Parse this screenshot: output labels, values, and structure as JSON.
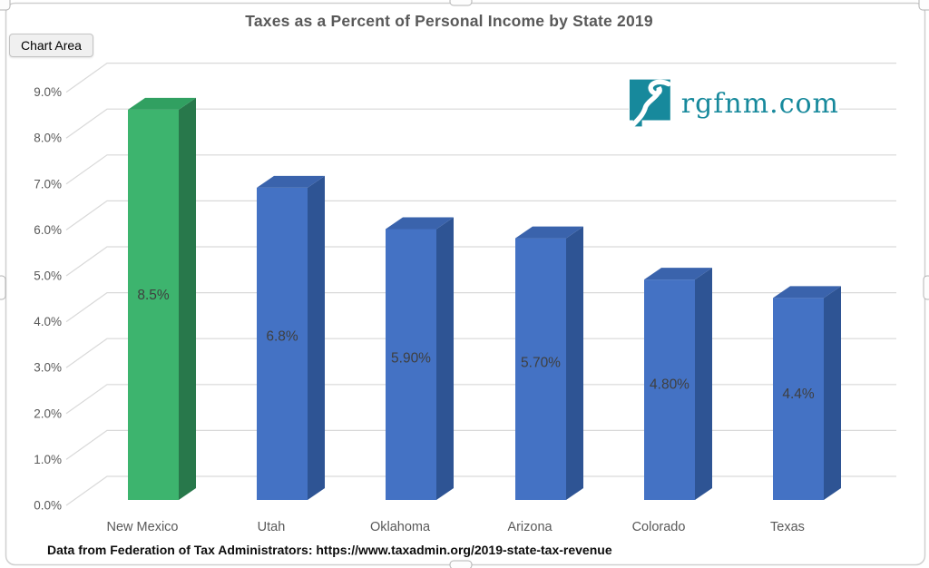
{
  "tooltip": {
    "label": "Chart Area"
  },
  "title": "Taxes as a Percent of Personal Income by State 2019",
  "logo": {
    "text": "rgfnm.com"
  },
  "source_note": "Data from Federation of Tax Administrators: https://www.taxadmin.org/2019-state-tax-revenue",
  "colors": {
    "highlight_front": "#3db46e",
    "highlight_side": "#28784b",
    "highlight_top": "#31a061",
    "bar_front": "#4472c4",
    "bar_side": "#2e5494",
    "bar_top": "#3a63ac",
    "gridline": "#d9d9d9",
    "axis_text": "#595959",
    "category_text": "#595959",
    "data_label_text": "#3f3f3f",
    "title_text": "#595959",
    "logo_teal": "#17899c",
    "frame_border": "#cfcfcf",
    "handle_fill": "#fdfdfd",
    "handle_border": "#b3b3b3"
  },
  "chart_data": {
    "type": "bar",
    "projection": "3d",
    "title": "Taxes as a Percent of Personal Income by State 2019",
    "categories": [
      "New Mexico",
      "Utah",
      "Oklahoma",
      "Arizona",
      "Colorado",
      "Texas"
    ],
    "values": [
      8.5,
      6.8,
      5.9,
      5.7,
      4.8,
      4.4
    ],
    "data_labels": [
      "8.5%",
      "6.8%",
      "5.90%",
      "5.70%",
      "4.80%",
      "4.4%"
    ],
    "highlight_index": 0,
    "xlabel": "",
    "ylabel": "",
    "ylim": [
      0,
      9
    ],
    "ytick_step": 1,
    "yticks": [
      "0.0%",
      "1.0%",
      "2.0%",
      "3.0%",
      "4.0%",
      "5.0%",
      "6.0%",
      "7.0%",
      "8.0%",
      "9.0%"
    ],
    "grid": true,
    "legend": "none"
  }
}
